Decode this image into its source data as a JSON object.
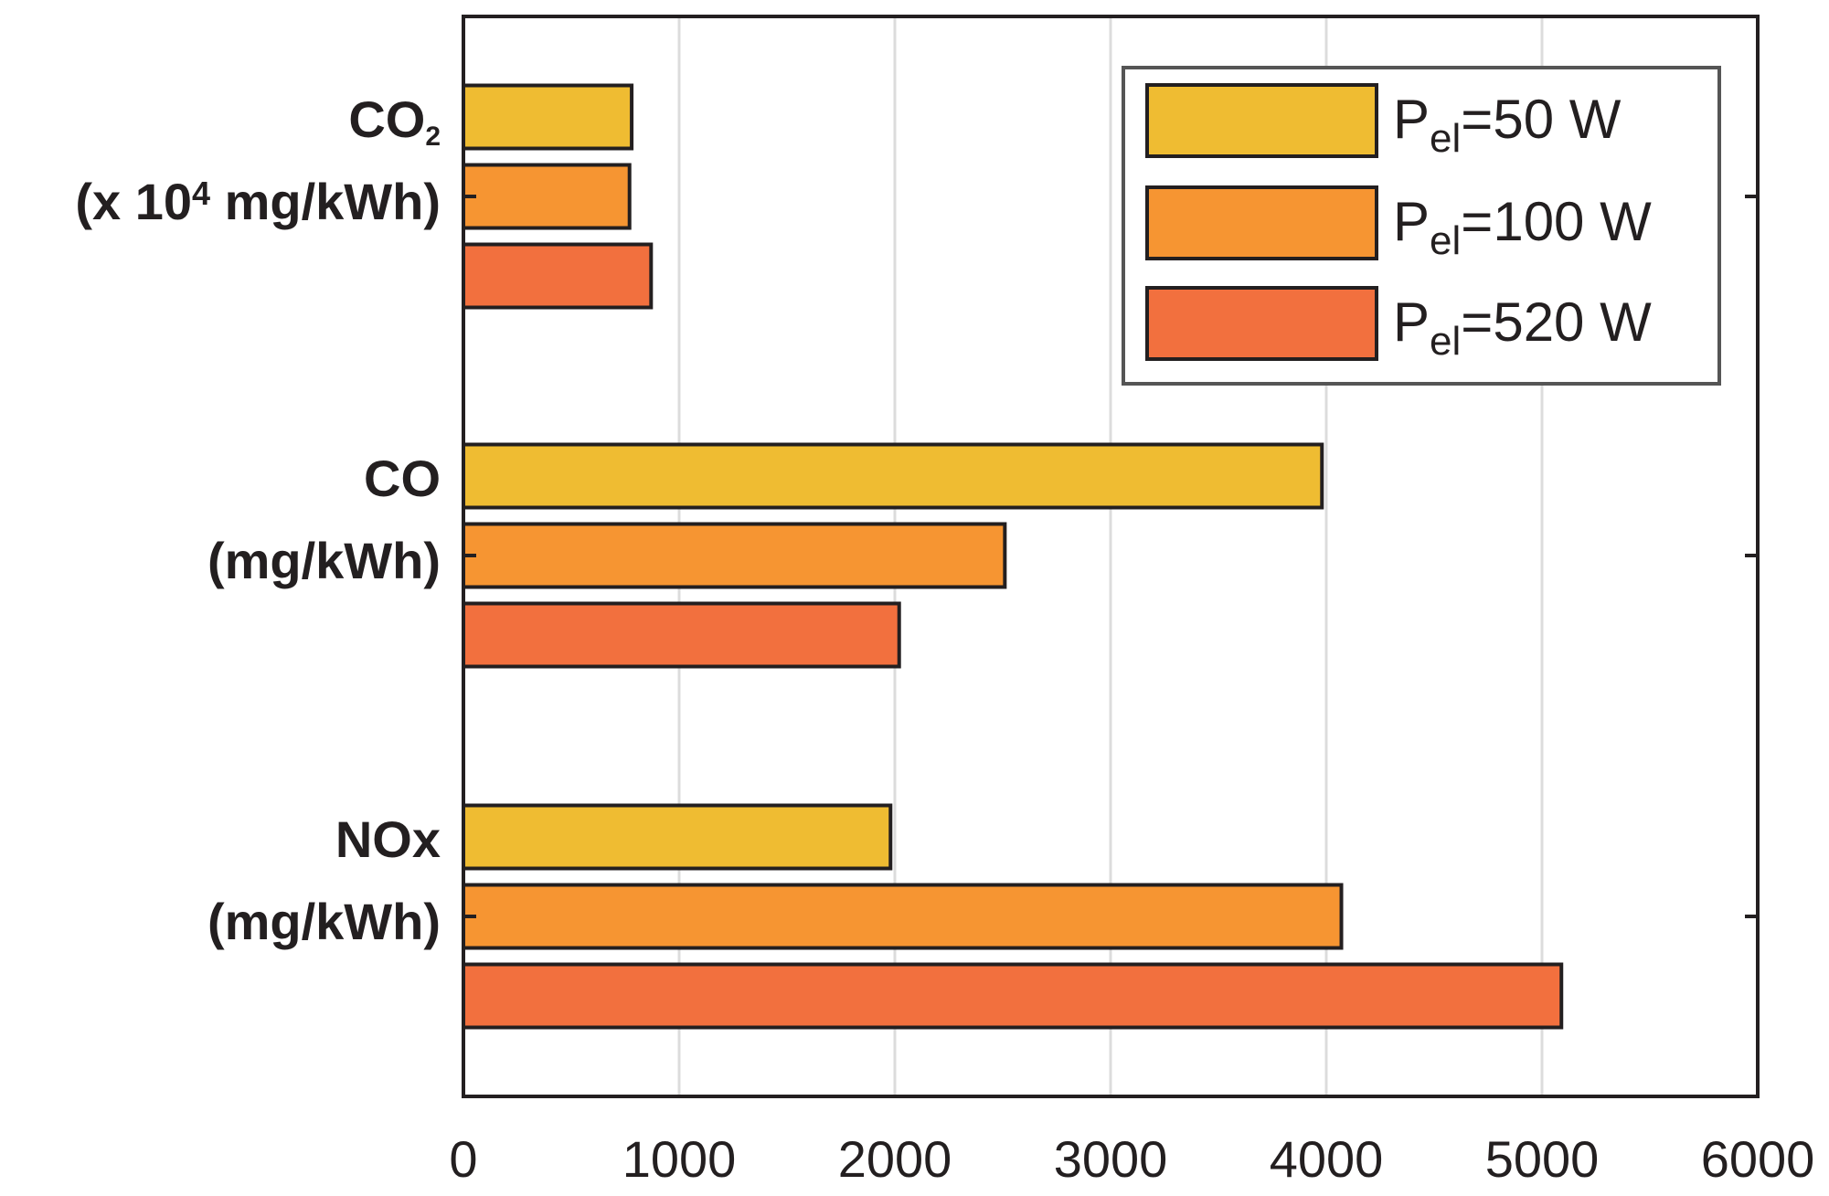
{
  "chart_data": {
    "type": "bar",
    "orientation": "horizontal",
    "xlim": [
      0,
      6000
    ],
    "xticks": [
      "0",
      "1000",
      "2000",
      "3000",
      "4000",
      "5000",
      "6000"
    ],
    "grid": "vertical",
    "legend_position": "top-right",
    "categories": [
      {
        "lines": [
          {
            "base": "CO",
            "sub": "2"
          },
          {
            "pre": "(x 10",
            "sup": "4",
            "post": " mg/kWh)"
          }
        ]
      },
      {
        "lines": [
          {
            "base": "CO"
          },
          {
            "base": "(mg/kWh)"
          }
        ]
      },
      {
        "lines": [
          {
            "base": "NOx"
          },
          {
            "base": "(mg/kWh)"
          }
        ]
      }
    ],
    "series": [
      {
        "name": "Pel=50 W",
        "label_main": "P",
        "label_sub": "el",
        "label_rest": "=50 W",
        "color": "#efbc32",
        "values": [
          780,
          3980,
          1980
        ]
      },
      {
        "name": "Pel=100 W",
        "label_main": "P",
        "label_sub": "el",
        "label_rest": "=100 W",
        "color": "#f69532",
        "values": [
          770,
          2510,
          4070
        ]
      },
      {
        "name": "Pel=520 W",
        "label_main": "P",
        "label_sub": "el",
        "label_rest": "=520 W",
        "color": "#f2703e",
        "values": [
          870,
          2020,
          5090
        ]
      }
    ]
  }
}
